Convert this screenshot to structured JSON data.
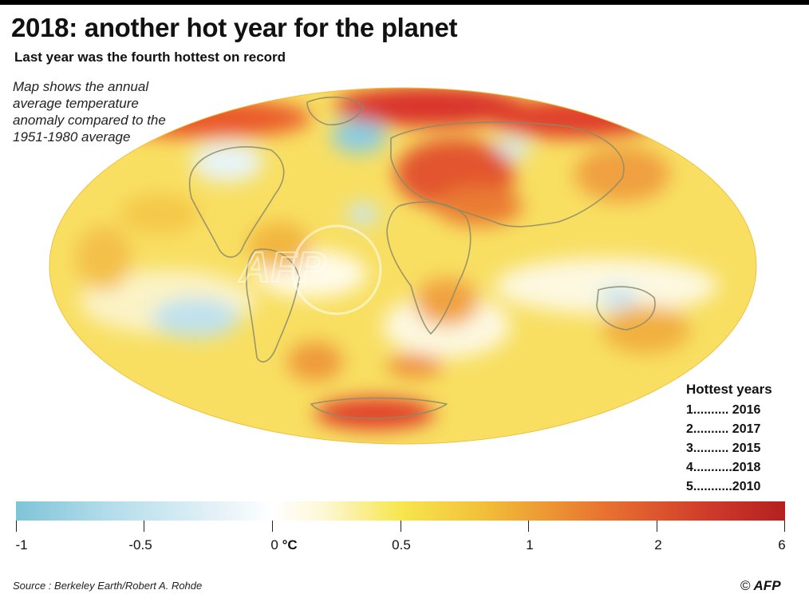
{
  "title": "2018: another hot year for the planet",
  "subtitle": "Last year was the fourth hottest on record",
  "note": "Map shows the annual average temperature anomaly compared to the 1951-1980 average",
  "watermark": "AFP",
  "hottest": {
    "header": "Hottest years",
    "rows": [
      "1.......... 2016",
      "2.......... 2017",
      "3.......... 2015",
      "4...........2018",
      "5...........2010"
    ]
  },
  "legend": {
    "unit": "°C",
    "ticks": [
      "-1",
      "-0.5",
      "0",
      "0.5",
      "1",
      "2",
      "6"
    ]
  },
  "source": "Source : Berkeley Earth/Robert A. Rohde",
  "credit": {
    "copyright": "©",
    "agency": "AFP"
  },
  "colors": {
    "cold": "#7fc4d8",
    "neutral": "#ffffff",
    "warm": "#f2c33a",
    "hot": "#b4201f"
  },
  "icons": [
    "copyright-icon",
    "afp-logo"
  ]
}
